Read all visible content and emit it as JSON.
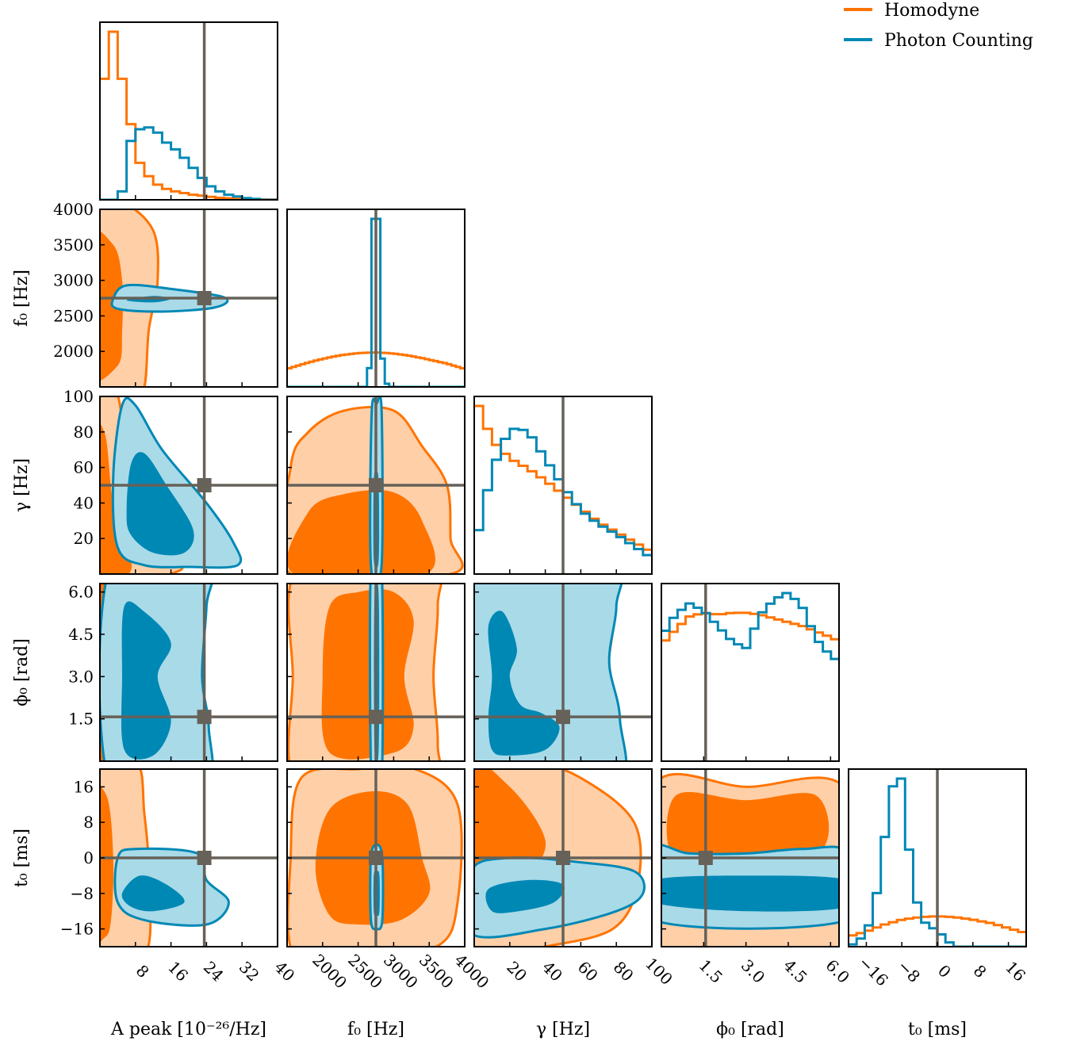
{
  "chart_data": {
    "type": "corner",
    "title": "",
    "parameters": [
      {
        "key": "A",
        "label": "A peak [10⁻²⁶/Hz]",
        "range": [
          0,
          40
        ],
        "ticks": [
          8,
          16,
          24,
          32,
          40
        ],
        "truth": 23.5
      },
      {
        "key": "f0",
        "label": "f₀ [Hz]",
        "range": [
          1500,
          4000
        ],
        "ticks": [
          2000,
          2500,
          3000,
          3500,
          4000
        ],
        "truth": 2750
      },
      {
        "key": "gamma",
        "label": "γ [Hz]",
        "range": [
          0,
          100
        ],
        "ticks": [
          20,
          40,
          60,
          80,
          100
        ],
        "truth": 50
      },
      {
        "key": "phi0",
        "label": "ϕ₀ [rad]",
        "range": [
          0,
          6.3
        ],
        "ticks": [
          1.5,
          3.0,
          4.5,
          6.0
        ],
        "truth": 1.57
      },
      {
        "key": "t0",
        "label": "t₀ [ms]",
        "range": [
          -20,
          20
        ],
        "ticks": [
          -16,
          -8,
          0,
          8,
          16
        ],
        "truth": 0
      }
    ],
    "tick_labels": {
      "A": [
        "8",
        "16",
        "24",
        "32",
        "40"
      ],
      "f0": [
        "2000",
        "2500",
        "3000",
        "3500",
        "4000"
      ],
      "gamma": [
        "20",
        "40",
        "60",
        "80",
        "100"
      ],
      "phi0": [
        "1.5",
        "3.0",
        "4.5",
        "6.0"
      ],
      "t0": [
        "−16",
        "−8",
        "0",
        "8",
        "16"
      ]
    },
    "series": [
      {
        "name": "Homodyne",
        "color": "#ff7400",
        "fill_inner": "#ff7400",
        "fill_outer": "#ffcfa8",
        "histograms": {
          "A": {
            "bins": [
              0,
              2,
              4,
              6,
              8,
              10,
              12,
              14,
              16,
              18,
              20,
              22,
              24,
              26,
              28,
              30,
              32,
              34,
              36,
              38,
              40
            ],
            "density": [
              0.72,
              1.0,
              0.72,
              0.45,
              0.22,
              0.14,
              0.09,
              0.065,
              0.05,
              0.04,
              0.03,
              0.025,
              0.018,
              0.012,
              0.009,
              0.006,
              0.004,
              0.003,
              0.002,
              0.001
            ]
          },
          "f0": {
            "x": [
              1500,
              1750,
              2000,
              2250,
              2500,
              2750,
              3000,
              3250,
              3500,
              3750,
              4000
            ],
            "density": [
              0.05,
              0.065,
              0.078,
              0.088,
              0.094,
              0.096,
              0.093,
              0.086,
              0.076,
              0.065,
              0.05
            ]
          },
          "gamma": {
            "x": [
              0,
              10,
              20,
              30,
              40,
              50,
              60,
              70,
              80,
              90,
              100
            ],
            "density": [
              0.9,
              0.67,
              0.58,
              0.53,
              0.47,
              0.4,
              0.33,
              0.26,
              0.21,
              0.16,
              0.11
            ]
          },
          "phi0": {
            "x": [
              0,
              0.5,
              1.0,
              1.5,
              2.0,
              2.5,
              3.0,
              3.5,
              4.0,
              4.5,
              5.0,
              5.5,
              6.0,
              6.3
            ],
            "density": [
              0.62,
              0.7,
              0.77,
              0.79,
              0.78,
              0.79,
              0.79,
              0.78,
              0.76,
              0.74,
              0.72,
              0.69,
              0.66,
              0.64
            ]
          },
          "t0": {
            "x": [
              -20,
              -16,
              -12,
              -8,
              -4,
              0,
              4,
              8,
              12,
              16,
              20
            ],
            "density": [
              0.06,
              0.09,
              0.13,
              0.16,
              0.175,
              0.18,
              0.175,
              0.16,
              0.14,
              0.11,
              0.08
            ]
          }
        }
      },
      {
        "name": "Photon Counting",
        "color": "#0088b5",
        "fill_inner": "#0088b5",
        "fill_outer": "#a9dae8",
        "histograms": {
          "A": {
            "bins": [
              0,
              2,
              4,
              6,
              8,
              10,
              12,
              14,
              16,
              18,
              20,
              22,
              24,
              26,
              28,
              30,
              32,
              34,
              36,
              38,
              40
            ],
            "density": [
              0.0,
              0.0,
              0.05,
              0.35,
              0.42,
              0.43,
              0.4,
              0.34,
              0.3,
              0.25,
              0.19,
              0.13,
              0.08,
              0.05,
              0.03,
              0.02,
              0.01,
              0.005,
              0.0,
              0.0
            ]
          },
          "f0": {
            "x": [
              2600,
              2650,
              2700,
              2725,
              2750,
              2775,
              2800,
              2850,
              2900,
              2950,
              3000
            ],
            "density": [
              0.0,
              0.02,
              0.28,
              0.53,
              1.0,
              0.53,
              0.28,
              0.05,
              0.01,
              0.0,
              0.0
            ]
          },
          "gamma": {
            "x": [
              0,
              10,
              20,
              30,
              40,
              50,
              60,
              70,
              80,
              90,
              100
            ],
            "density": [
              0.12,
              0.52,
              0.73,
              0.72,
              0.58,
              0.44,
              0.32,
              0.25,
              0.2,
              0.14,
              0.08
            ]
          },
          "phi0": {
            "x": [
              0,
              0.5,
              1.0,
              1.5,
              2.0,
              2.5,
              3.0,
              3.5,
              4.0,
              4.5,
              5.0,
              5.5,
              6.0,
              6.3
            ],
            "density": [
              0.66,
              0.78,
              0.84,
              0.8,
              0.72,
              0.64,
              0.6,
              0.78,
              0.86,
              0.9,
              0.82,
              0.65,
              0.56,
              0.53
            ]
          },
          "t0": {
            "x": [
              -20,
              -18,
              -16,
              -14,
              -12,
              -10,
              -8,
              -6,
              -4,
              -2,
              0,
              2,
              4,
              8,
              12,
              16,
              20
            ],
            "density": [
              0.0,
              0.03,
              0.08,
              0.25,
              0.62,
              0.95,
              1.0,
              0.48,
              0.18,
              0.12,
              0.1,
              0.04,
              0.0,
              0.0,
              0.0,
              0.0,
              0.0
            ]
          }
        }
      }
    ],
    "legend": {
      "position": "top-right",
      "entries": [
        "Homodyne",
        "Photon Counting"
      ]
    },
    "truth_color": "#666159"
  }
}
